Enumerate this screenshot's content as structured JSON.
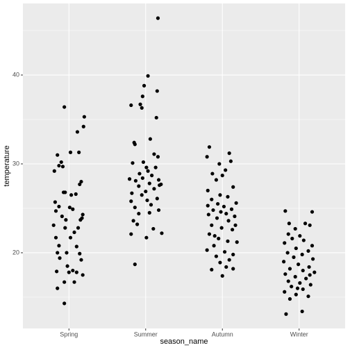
{
  "chart_data": {
    "type": "scatter",
    "xlabel": "season_name",
    "ylabel": "temperature",
    "xlim": [
      0.4,
      4.6
    ],
    "xticks": [
      {
        "value": 1,
        "label": "Spring"
      },
      {
        "value": 2,
        "label": "Summer"
      },
      {
        "value": 3,
        "label": "Autumn"
      },
      {
        "value": 4,
        "label": "Winter"
      }
    ],
    "ylim": [
      11.48,
      48.05
    ],
    "yticks": [
      20,
      30,
      40
    ],
    "minor_yticks": [
      15,
      25,
      35,
      45
    ],
    "grid": true,
    "series": [
      {
        "color": "#000000",
        "x": [
          0.94,
          1.2,
          1.19,
          1.11,
          0.85,
          1.02,
          1.13,
          0.9,
          0.81,
          0.87,
          0.92,
          1.16,
          1.14,
          0.95,
          0.93,
          1.03,
          1.09,
          0.82,
          0.87,
          1.01,
          1.05,
          1.18,
          0.91,
          0.83,
          0.96,
          1.15,
          1.17,
          1.12,
          0.8,
          0.95,
          1.07,
          0.83,
          1.02,
          0.87,
          1.1,
          0.85,
          0.97,
          1.14,
          1.16,
          0.88,
          0.98,
          1.05,
          0.84,
          1.1,
          1.18,
          0.94,
          1.07,
          0.85,
          0.94,
          1.0,
          2.16,
          2.03,
          1.98,
          2.15,
          1.96,
          1.81,
          1.93,
          1.95,
          2.14,
          2.06,
          1.85,
          1.86,
          2.11,
          2.16,
          1.97,
          1.83,
          2.01,
          2.13,
          2.03,
          1.92,
          2.08,
          1.96,
          2.17,
          1.87,
          2.05,
          2.2,
          1.91,
          2.11,
          2.0,
          1.82,
          1.95,
          2.15,
          2.02,
          1.81,
          2.07,
          1.86,
          2.17,
          2.05,
          1.91,
          1.84,
          1.89,
          2.1,
          2.21,
          1.81,
          2.01,
          1.86,
          2.18,
          1.79,
          2.83,
          3.09,
          2.8,
          3.11,
          2.96,
          3.04,
          2.87,
          3.0,
          2.92,
          3.14,
          2.81,
          2.97,
          3.07,
          2.86,
          3.18,
          2.94,
          3.02,
          2.81,
          3.12,
          2.88,
          2.98,
          3.05,
          2.82,
          3.16,
          2.93,
          3.08,
          2.86,
          2.99,
          3.13,
          2.83,
          2.95,
          3.07,
          3.19,
          2.89,
          2.8,
          3.03,
          3.14,
          2.92,
          3.09,
          2.97,
          2.86,
          3.14,
          3.0,
          3.05,
          2.9,
          3.17,
          3.82,
          4.17,
          3.87,
          4.08,
          4.14,
          3.95,
          3.86,
          4.01,
          3.91,
          4.06,
          3.81,
          4.17,
          3.96,
          4.12,
          3.85,
          4.04,
          3.93,
          4.18,
          3.8,
          3.99,
          4.13,
          3.88,
          4.05,
          4.2,
          3.82,
          3.95,
          4.09,
          3.86,
          4.01,
          4.15,
          3.9,
          4.05,
          3.81,
          3.96,
          4.12,
          3.88,
          4.04,
          3.83,
          3.98,
          4.14
        ],
        "values": [
          36.4,
          35.3,
          34.2,
          33.6,
          31,
          31.3,
          31.3,
          30.2,
          29.2,
          29.8,
          29.7,
          28,
          27.7,
          26.8,
          26.8,
          26.5,
          26.6,
          25.7,
          25.2,
          25.1,
          24.9,
          24.3,
          24.1,
          24.7,
          23.7,
          23.7,
          23.9,
          22.8,
          23.1,
          22.8,
          22.3,
          21.7,
          21.7,
          20.8,
          20.7,
          20,
          20,
          19.9,
          19.2,
          19.4,
          18.5,
          18,
          17.9,
          17.8,
          17.5,
          16.7,
          16.7,
          16,
          14.3,
          17.8,
          46.4,
          39.9,
          38.8,
          38.2,
          37.6,
          36.6,
          36.7,
          36.3,
          35.2,
          32.8,
          32.4,
          32.2,
          31.1,
          30.8,
          30.2,
          30.1,
          29.6,
          29.6,
          29.2,
          28.9,
          28.7,
          28.4,
          28.2,
          28.1,
          27.8,
          27.7,
          27.5,
          27.2,
          26.9,
          26.7,
          26.5,
          26.1,
          25.9,
          25.8,
          25.4,
          25.1,
          24.8,
          24.5,
          24.4,
          23.6,
          23.2,
          22.7,
          22.2,
          22.1,
          21.7,
          18.7,
          27.6,
          28.3,
          31.9,
          31.2,
          30.8,
          30.3,
          30,
          29.3,
          28.9,
          28.7,
          28.2,
          27.4,
          27,
          26.5,
          26.3,
          26,
          25.6,
          25.5,
          25.2,
          25.3,
          24.9,
          24.8,
          24.6,
          24.4,
          24.3,
          24.1,
          23.9,
          23.6,
          23.1,
          22.8,
          22.6,
          22.1,
          21.6,
          21.3,
          21.2,
          20.8,
          20.3,
          20.1,
          19.8,
          19.6,
          19.2,
          18.9,
          18.1,
          18.2,
          17.4,
          18.4,
          21.9,
          23.1,
          24.7,
          24.6,
          23.3,
          23.3,
          23.1,
          22.7,
          22.1,
          21.9,
          21.6,
          21.4,
          21.1,
          20.8,
          20.5,
          20.2,
          20,
          19.8,
          19.5,
          19.3,
          19,
          18.7,
          18.4,
          18.2,
          18,
          17.8,
          17.6,
          17.3,
          17.1,
          16.8,
          16.6,
          16.4,
          16.2,
          15.9,
          15.6,
          15.3,
          15.1,
          14.8,
          13.4,
          13.1,
          16,
          17.5
        ]
      }
    ]
  }
}
